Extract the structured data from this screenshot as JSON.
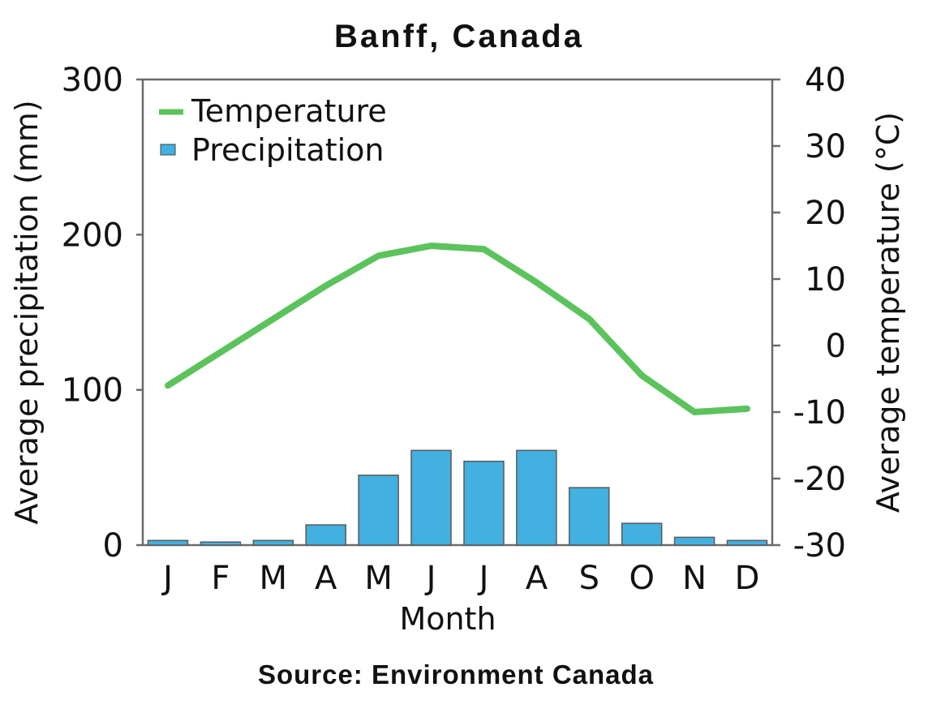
{
  "chart_data": {
    "type": "bar",
    "title": "Banff, Canada",
    "source": "Source: Environment Canada",
    "xlabel": "Month",
    "ylabel_left": "Average precipitation (mm)",
    "ylabel_right": "Average temperature (°C)",
    "categories": [
      "J",
      "F",
      "M",
      "A",
      "M",
      "J",
      "J",
      "A",
      "S",
      "O",
      "N",
      "D"
    ],
    "left_ticks": [
      "300",
      "200",
      "100",
      "0"
    ],
    "right_ticks": [
      "40",
      "30",
      "20",
      "10",
      "0",
      "-10",
      "-20",
      "-30"
    ],
    "ylim_left": [
      0,
      300
    ],
    "ylim_right": [
      -30,
      40
    ],
    "legend_placement": "top-left",
    "grid": false,
    "series": [
      {
        "name": "Precipitation",
        "type": "bar",
        "axis": "left",
        "color": "#42b0e0",
        "values": [
          3,
          2,
          3,
          13,
          45,
          61,
          54,
          61,
          37,
          14,
          5,
          3
        ]
      },
      {
        "name": "Temperature",
        "type": "line",
        "axis": "right",
        "color": "#5cc35c",
        "values": [
          -6,
          -1,
          4,
          9,
          13.5,
          15,
          14.5,
          9.5,
          4,
          -4.5,
          -10,
          null
        ]
      }
    ],
    "temperature_line_end": -9.5
  }
}
